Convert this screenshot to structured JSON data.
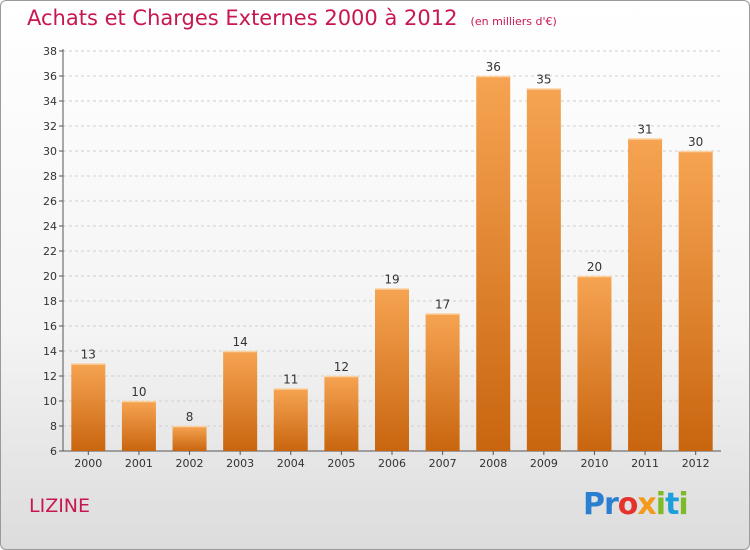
{
  "header": {
    "title": "Achats et Charges Externes 2000 à 2012",
    "unit": "(en milliers d'€)"
  },
  "footer": {
    "commune": "LIZINE",
    "logo_text": "Proxiti"
  },
  "colors": {
    "accent": "#c8174f",
    "bar_top": "#f6a452",
    "bar_bottom": "#c9650f"
  },
  "chart_data": {
    "type": "bar",
    "title": "Achats et Charges Externes 2000 à 2012",
    "subtitle": "(en milliers d'€)",
    "categories": [
      "2000",
      "2001",
      "2002",
      "2003",
      "2004",
      "2005",
      "2006",
      "2007",
      "2008",
      "2009",
      "2010",
      "2011",
      "2012"
    ],
    "values": [
      13,
      10,
      8,
      14,
      11,
      12,
      19,
      17,
      36,
      35,
      20,
      31,
      30
    ],
    "ylim": [
      6,
      38
    ],
    "yticks": [
      6,
      8,
      10,
      12,
      14,
      16,
      18,
      20,
      22,
      24,
      26,
      28,
      30,
      32,
      34,
      36,
      38
    ],
    "grid": true
  }
}
